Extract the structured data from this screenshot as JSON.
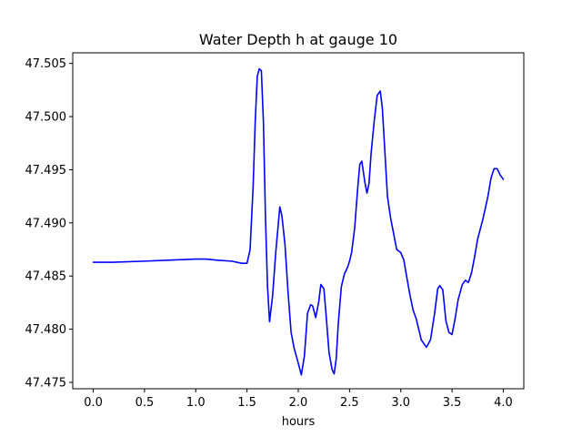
{
  "chart_data": {
    "type": "line",
    "title": "Water Depth h at gauge 10",
    "xlabel": "hours",
    "ylabel": "",
    "xlim": [
      -0.2,
      4.2
    ],
    "ylim": [
      47.4744,
      47.506
    ],
    "xticks": [
      0.0,
      0.5,
      1.0,
      1.5,
      2.0,
      2.5,
      3.0,
      3.5,
      4.0
    ],
    "xtick_labels": [
      "0.0",
      "0.5",
      "1.0",
      "1.5",
      "2.0",
      "2.5",
      "3.0",
      "3.5",
      "4.0"
    ],
    "yticks": [
      47.475,
      47.48,
      47.485,
      47.49,
      47.495,
      47.5,
      47.505
    ],
    "ytick_labels": [
      "47.475",
      "47.480",
      "47.485",
      "47.490",
      "47.495",
      "47.500",
      "47.505"
    ],
    "grid": false,
    "series": [
      {
        "color": "#0000ff",
        "x": [
          0.0,
          0.2,
          0.5,
          0.75,
          1.0,
          1.1,
          1.2,
          1.35,
          1.45,
          1.5,
          1.53,
          1.56,
          1.58,
          1.6,
          1.62,
          1.64,
          1.66,
          1.68,
          1.7,
          1.72,
          1.75,
          1.78,
          1.82,
          1.84,
          1.87,
          1.9,
          1.93,
          1.96,
          2.0,
          2.03,
          2.06,
          2.09,
          2.12,
          2.14,
          2.17,
          2.2,
          2.22,
          2.25,
          2.27,
          2.3,
          2.33,
          2.35,
          2.37,
          2.39,
          2.42,
          2.45,
          2.48,
          2.5,
          2.52,
          2.55,
          2.58,
          2.6,
          2.62,
          2.65,
          2.67,
          2.69,
          2.71,
          2.74,
          2.77,
          2.8,
          2.82,
          2.84,
          2.87,
          2.9,
          2.93,
          2.96,
          3.0,
          3.03,
          3.06,
          3.09,
          3.12,
          3.15,
          3.2,
          3.25,
          3.29,
          3.33,
          3.36,
          3.38,
          3.41,
          3.44,
          3.47,
          3.5,
          3.53,
          3.56,
          3.6,
          3.63,
          3.66,
          3.69,
          3.72,
          3.75,
          3.8,
          3.85,
          3.88,
          3.91,
          3.94,
          3.97,
          4.0
        ],
        "y": [
          47.4863,
          47.4863,
          47.4864,
          47.4865,
          47.4866,
          47.4866,
          47.4865,
          47.4864,
          47.4862,
          47.4862,
          47.4875,
          47.4935,
          47.4995,
          47.5038,
          47.5045,
          47.5043,
          47.4995,
          47.4905,
          47.484,
          47.4807,
          47.4832,
          47.4872,
          47.4915,
          47.4907,
          47.488,
          47.4835,
          47.4797,
          47.4782,
          47.4768,
          47.4757,
          47.4775,
          47.4815,
          47.4823,
          47.4822,
          47.4811,
          47.4826,
          47.4842,
          47.4838,
          47.4815,
          47.4778,
          47.4762,
          47.4758,
          47.4772,
          47.4805,
          47.484,
          47.4852,
          47.4858,
          47.4864,
          47.4872,
          47.4895,
          47.4933,
          47.4955,
          47.4958,
          47.4938,
          47.4928,
          47.4937,
          47.4965,
          47.4995,
          47.502,
          47.5024,
          47.5008,
          47.4975,
          47.4925,
          47.4905,
          47.489,
          47.4875,
          47.4872,
          47.4865,
          47.4848,
          47.4832,
          47.4818,
          47.481,
          47.479,
          47.4783,
          47.479,
          47.4815,
          47.4838,
          47.4841,
          47.4837,
          47.4808,
          47.4797,
          47.4795,
          47.481,
          47.4828,
          47.4842,
          47.4846,
          47.4844,
          47.4853,
          47.4868,
          47.4885,
          47.4903,
          47.4925,
          47.4942,
          47.4951,
          47.4951,
          47.4945,
          47.4941
        ]
      }
    ]
  }
}
